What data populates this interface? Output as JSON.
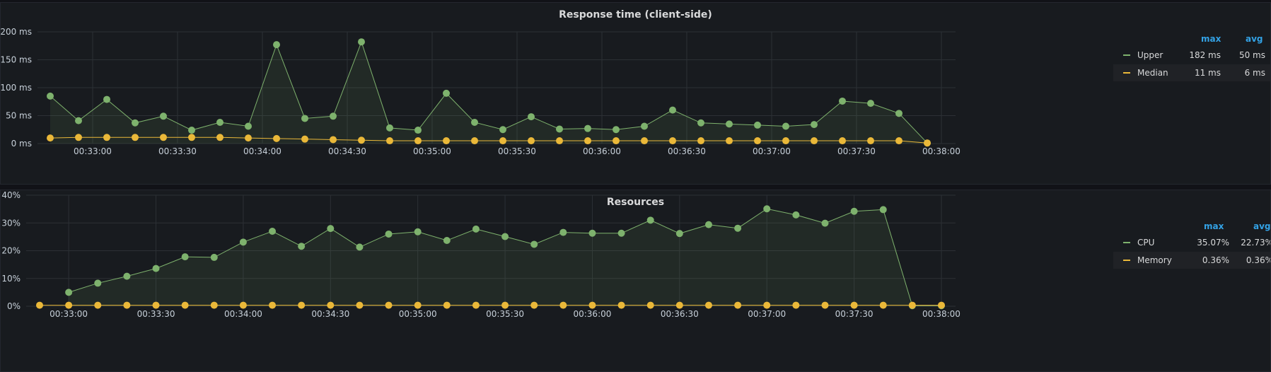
{
  "panels": [
    {
      "title": "Response time (client-side)",
      "legend": {
        "max_label": "max",
        "avg_label": "avg",
        "rows": [
          {
            "name": "Upper",
            "max": "182 ms",
            "avg": "50 ms",
            "color": "#7eb26d"
          },
          {
            "name": "Median",
            "max": "11 ms",
            "avg": "6 ms",
            "color": "#eab839"
          }
        ]
      }
    },
    {
      "title": "Resources",
      "legend": {
        "max_label": "max",
        "avg_label": "avg",
        "rows": [
          {
            "name": "CPU",
            "max": "35.07%",
            "avg": "22.73%",
            "color": "#7eb26d"
          },
          {
            "name": "Memory",
            "max": "0.36%",
            "avg": "0.36%",
            "color": "#eab839"
          }
        ]
      }
    }
  ],
  "chart_data": [
    {
      "type": "line",
      "title": "Response time (client-side)",
      "x_start": "00:32:45",
      "x_step_seconds": 10,
      "x_ticks": [
        "00:33:00",
        "00:33:30",
        "00:34:00",
        "00:34:30",
        "00:35:00",
        "00:35:30",
        "00:36:00",
        "00:36:30",
        "00:37:00",
        "00:37:30",
        "00:38:00"
      ],
      "y_ticks": [
        "0 ms",
        "50 ms",
        "100 ms",
        "150 ms",
        "200 ms"
      ],
      "ylim": [
        0,
        200
      ],
      "grid": true,
      "legend_placement": "right",
      "series": [
        {
          "name": "Upper",
          "color": "#7eb26d",
          "fill": true,
          "values": [
            85,
            41,
            79,
            37,
            49,
            24,
            38,
            31,
            177,
            45,
            49,
            182,
            28,
            24,
            90,
            38,
            25,
            48,
            26,
            27,
            25,
            31,
            60,
            37,
            35,
            33,
            31,
            34,
            76,
            72,
            54,
            1
          ]
        },
        {
          "name": "Median",
          "color": "#eab839",
          "fill": false,
          "values": [
            10,
            11,
            11,
            11,
            11,
            11,
            11,
            10,
            9,
            8,
            7,
            6,
            5,
            5,
            5,
            5,
            5,
            5,
            5,
            5,
            5,
            5,
            5,
            5,
            5,
            5,
            5,
            5,
            5,
            5,
            5,
            1
          ]
        }
      ]
    },
    {
      "type": "line",
      "title": "Resources",
      "x_start": "00:32:50",
      "x_step_seconds": 10,
      "x_ticks": [
        "00:33:00",
        "00:33:30",
        "00:34:00",
        "00:34:30",
        "00:35:00",
        "00:35:30",
        "00:36:00",
        "00:36:30",
        "00:37:00",
        "00:37:30",
        "00:38:00"
      ],
      "y_ticks": [
        "0%",
        "10%",
        "20%",
        "30%",
        "40%"
      ],
      "ylim": [
        0,
        40
      ],
      "grid": true,
      "legend_placement": "right",
      "series": [
        {
          "name": "CPU",
          "color": "#7eb26d",
          "fill": true,
          "start_index": 1,
          "values": [
            5,
            8.3,
            10.8,
            13.6,
            17.8,
            17.6,
            23.1,
            27,
            21.6,
            28,
            21.3,
            26,
            26.8,
            23.7,
            27.8,
            25.1,
            22.3,
            26.6,
            26.3,
            26.3,
            31,
            26.2,
            29.4,
            28.1,
            35.1,
            32.9,
            29.9,
            34.2,
            34.8,
            0.2,
            0.2
          ]
        },
        {
          "name": "Memory",
          "color": "#eab839",
          "fill": false,
          "start_index": 0,
          "values": [
            0.36,
            0.36,
            0.36,
            0.36,
            0.36,
            0.36,
            0.36,
            0.36,
            0.36,
            0.36,
            0.36,
            0.36,
            0.36,
            0.36,
            0.36,
            0.36,
            0.36,
            0.36,
            0.36,
            0.36,
            0.36,
            0.36,
            0.36,
            0.36,
            0.36,
            0.36,
            0.36,
            0.36,
            0.36,
            0.36,
            0.36,
            0.36
          ]
        }
      ]
    }
  ]
}
